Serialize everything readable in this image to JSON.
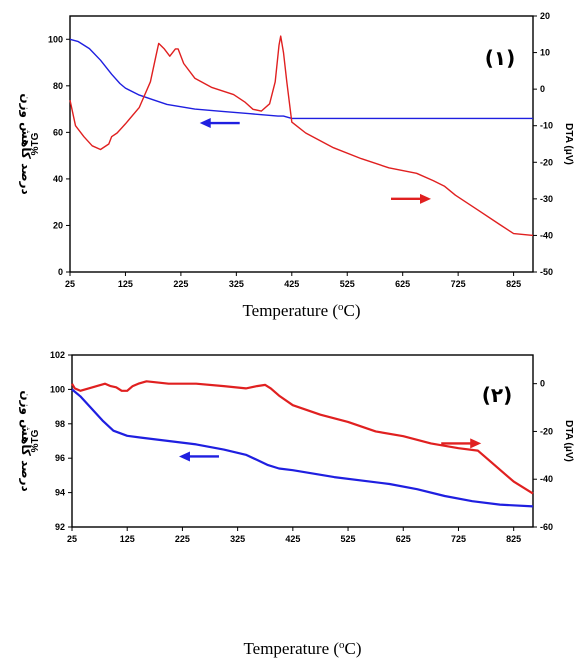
{
  "colors": {
    "tg": "#1f1fe0",
    "dta": "#e02020",
    "axis": "#000000"
  },
  "chart_data": [
    {
      "type": "line",
      "panel_label": "(۱)",
      "xlabel_main": "Temperature (",
      "xlabel_sup": "o",
      "xlabel_end": "C)",
      "ylabel_left_fa": "درصد کاهش وزن",
      "ylabel_left_en": "%TG",
      "ylabel_right": "DTA (μV)",
      "xlim": [
        25,
        860
      ],
      "xticks": [
        25,
        125,
        225,
        325,
        425,
        525,
        625,
        725,
        825
      ],
      "ylim_left": [
        0,
        110
      ],
      "yticks_left": [
        0,
        20,
        40,
        60,
        80,
        100
      ],
      "ylim_right": [
        -50,
        20
      ],
      "yticks_right": [
        -50,
        -40,
        -30,
        -20,
        -10,
        0,
        10,
        20
      ],
      "series": [
        {
          "axis": "left",
          "color_key": "tg",
          "x": [
            25,
            40,
            60,
            80,
            100,
            115,
            125,
            150,
            175,
            200,
            250,
            300,
            350,
            400,
            410,
            425,
            525,
            860
          ],
          "y": [
            100,
            99,
            96,
            91,
            85,
            81,
            79,
            76,
            74,
            72,
            70,
            69,
            68,
            67,
            67,
            66,
            66,
            66
          ]
        },
        {
          "axis": "right",
          "color_key": "dta",
          "x": [
            25,
            35,
            50,
            65,
            80,
            95,
            100,
            110,
            125,
            150,
            170,
            180,
            185,
            195,
            205,
            215,
            220,
            230,
            250,
            280,
            320,
            340,
            355,
            370,
            385,
            395,
            402,
            405,
            410,
            416,
            425,
            450,
            500,
            550,
            600,
            650,
            680,
            700,
            720,
            760,
            800,
            825,
            860
          ],
          "y": [
            -3,
            -10,
            -13,
            -15.5,
            -16.5,
            -15,
            -13,
            -12,
            -9.5,
            -5,
            2,
            9,
            12.5,
            11,
            9,
            11,
            11,
            7,
            3,
            0.5,
            -1.5,
            -3.5,
            -5.5,
            -6,
            -4,
            2,
            12,
            14.5,
            10,
            2,
            -9,
            -12,
            -16,
            -19,
            -21.5,
            -23,
            -25,
            -26.5,
            -29,
            -33,
            -37,
            -39.5,
            -40
          ]
        }
      ],
      "annotations": [
        {
          "label": "tg-arrow",
          "direction": "left",
          "x": 295,
          "y_left": 64,
          "color_key": "tg"
        },
        {
          "label": "dta-arrow",
          "direction": "right",
          "x": 640,
          "y_right": -30,
          "color_key": "dta"
        }
      ]
    },
    {
      "type": "line",
      "panel_label": "(۲)",
      "xlabel_main": "Temperature (",
      "xlabel_sup": "o",
      "xlabel_end": "C)",
      "ylabel_left_fa": "درصد کاهش وزن",
      "ylabel_left_en": "%TG",
      "ylabel_right": "DTA (μV)",
      "xlim": [
        25,
        860
      ],
      "xticks": [
        25,
        125,
        225,
        325,
        425,
        525,
        625,
        725,
        825
      ],
      "ylim_left": [
        92,
        102
      ],
      "yticks_left": [
        92,
        94,
        96,
        98,
        100,
        102
      ],
      "ylim_right": [
        -60,
        12
      ],
      "yticks_right": [
        -60,
        -40,
        -20,
        0
      ],
      "series": [
        {
          "axis": "left",
          "color_key": "tg",
          "x": [
            25,
            40,
            60,
            80,
            100,
            125,
            150,
            200,
            250,
            300,
            340,
            360,
            380,
            400,
            425,
            500,
            600,
            650,
            700,
            750,
            800,
            860
          ],
          "y": [
            100,
            99.6,
            98.9,
            98.2,
            97.6,
            97.3,
            97.2,
            97,
            96.8,
            96.5,
            96.2,
            95.9,
            95.6,
            95.4,
            95.3,
            94.9,
            94.5,
            94.2,
            93.8,
            93.5,
            93.3,
            93.2
          ]
        },
        {
          "axis": "right",
          "color_key": "dta",
          "x": [
            25,
            30,
            40,
            55,
            70,
            85,
            95,
            105,
            115,
            125,
            135,
            145,
            160,
            200,
            250,
            300,
            340,
            360,
            375,
            385,
            400,
            425,
            475,
            525,
            575,
            625,
            675,
            725,
            760,
            780,
            800,
            825,
            860
          ],
          "y": [
            0,
            -2,
            -3,
            -2,
            -1,
            0,
            -1,
            -1.5,
            -3,
            -3,
            -1,
            0,
            1,
            0,
            0,
            -1,
            -2,
            -1,
            -0.5,
            -2,
            -5,
            -9,
            -13,
            -16,
            -20,
            -22,
            -25,
            -27,
            -28,
            -32,
            -36,
            -41,
            -46
          ]
        }
      ],
      "annotations": [
        {
          "label": "tg-arrow",
          "direction": "left",
          "x": 255,
          "y_left": 96.1,
          "color_key": "tg"
        },
        {
          "label": "dta-arrow",
          "direction": "right",
          "x": 730,
          "y_right": -25,
          "color_key": "dta"
        }
      ]
    }
  ]
}
